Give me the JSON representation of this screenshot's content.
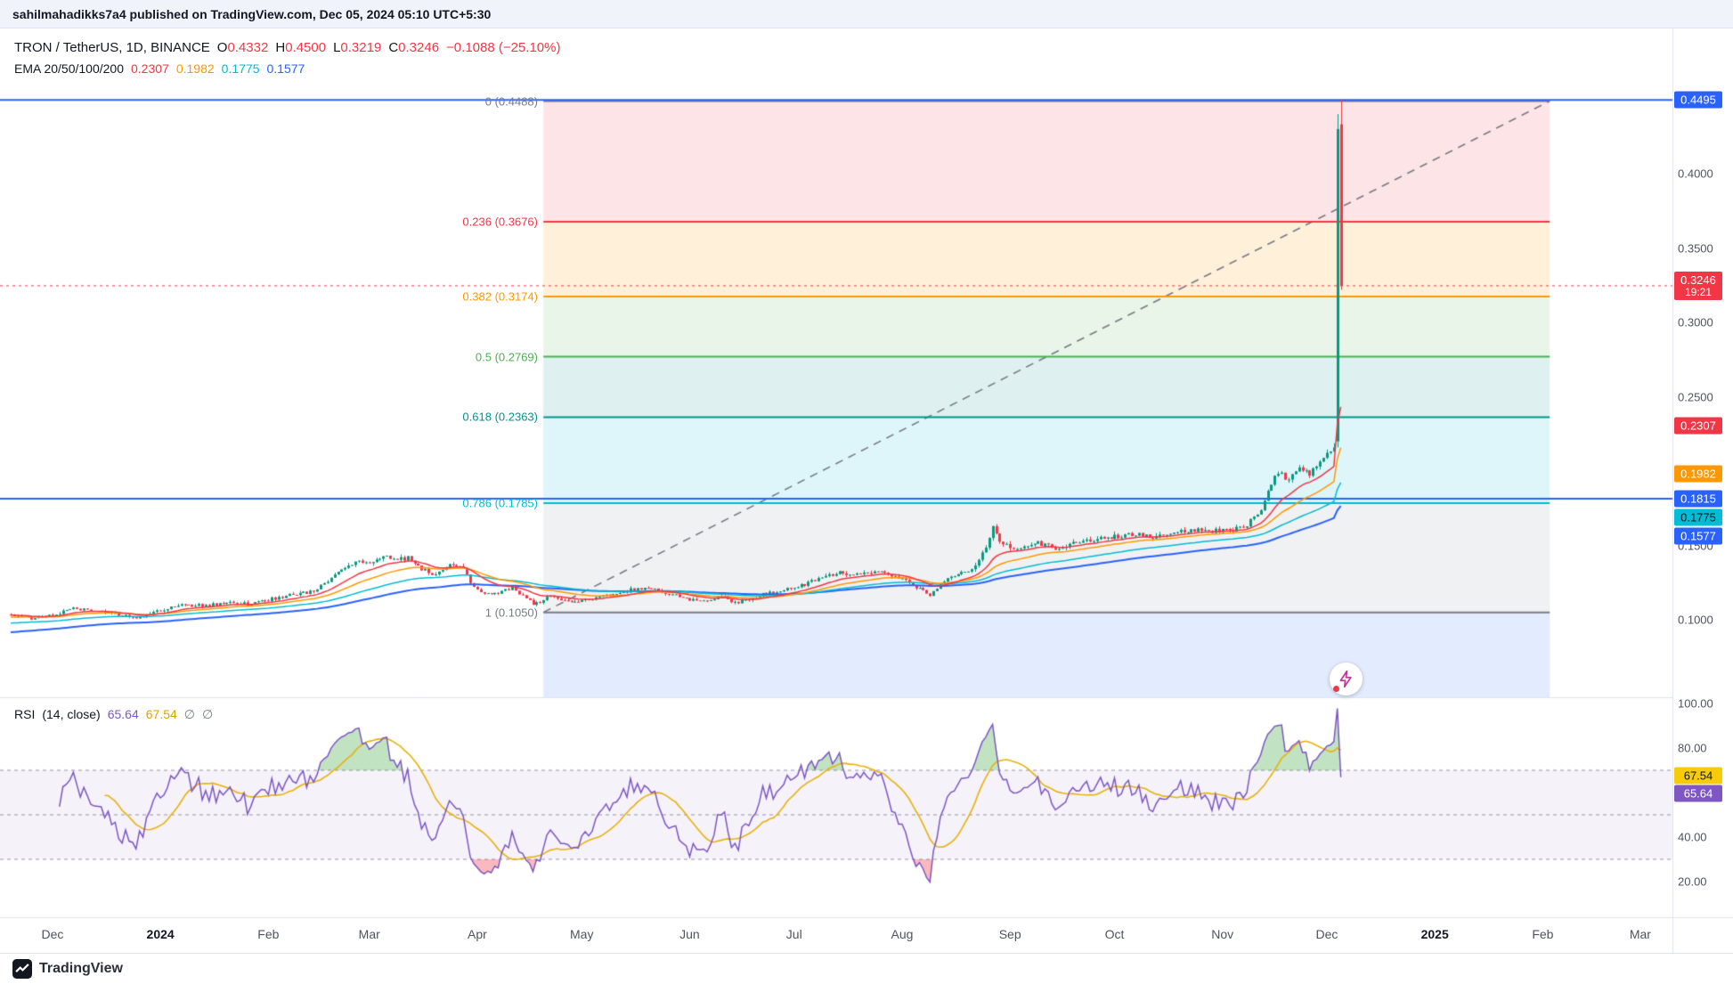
{
  "topbar": {
    "text": "sahilmahadikks7a4 published on TradingView.com, Dec 05, 2024 05:10 UTC+5:30"
  },
  "legend": {
    "symbol": "TRON / TetherUS, 1D, BINANCE",
    "o_label": "O",
    "o": "0.4332",
    "h_label": "H",
    "h": "0.4500",
    "l_label": "L",
    "l": "0.3219",
    "c_label": "C",
    "c": "0.3246",
    "change": "−0.1088 (−25.10%)",
    "ema_title": "EMA 20/50/100/200",
    "ema20": "0.2307",
    "ema50": "0.1982",
    "ema100": "0.1775",
    "ema200": "0.1577"
  },
  "rsi_legend": {
    "title": "RSI",
    "params": "(14, close)",
    "value": "65.64",
    "ma": "67.54",
    "empty1": "∅",
    "empty2": "∅"
  },
  "footer": {
    "brand": "TradingView"
  },
  "icons": {
    "reaction": "lightning-bolt-icon",
    "footer_logo": "tradingview-logo-icon"
  },
  "colors": {
    "background": "#ffffff",
    "candle_up": "#089981",
    "candle_down": "#f23645",
    "grid": "#e0e3eb",
    "axis_text": "#50535e",
    "blue_line": "#2962ff",
    "rsi_band": "rgba(126,87,194,0.08)",
    "rsi_level_line": "#9598a1",
    "rsi_overbought_fill": "rgba(76,175,80,0.35)",
    "rsi_oversold_fill": "rgba(242,54,69,0.35)"
  },
  "chart_data": {
    "type": "candlestick",
    "symbol": "TRON / TetherUS",
    "interval": "1D",
    "exchange": "BINANCE",
    "ylim": [
      0.048,
      0.498
    ],
    "last_bar": {
      "open": 0.4332,
      "high": 0.45,
      "low": 0.3219,
      "close": 0.3246,
      "change": -0.1088,
      "change_pct": -25.1
    },
    "price_path_anchors": [
      [
        0,
        0.104
      ],
      [
        6,
        0.1005
      ],
      [
        12,
        0.103
      ],
      [
        18,
        0.108
      ],
      [
        24,
        0.1055
      ],
      [
        30,
        0.104
      ],
      [
        36,
        0.101
      ],
      [
        43,
        0.1065
      ],
      [
        50,
        0.11
      ],
      [
        56,
        0.1095
      ],
      [
        62,
        0.1115
      ],
      [
        68,
        0.1105
      ],
      [
        74,
        0.1135
      ],
      [
        80,
        0.1165
      ],
      [
        86,
        0.1185
      ],
      [
        90,
        0.124
      ],
      [
        95,
        0.133
      ],
      [
        100,
        0.139
      ],
      [
        104,
        0.138
      ],
      [
        107,
        0.143
      ],
      [
        110,
        0.14
      ],
      [
        114,
        0.1415
      ],
      [
        118,
        0.134
      ],
      [
        122,
        0.13
      ],
      [
        126,
        0.1365
      ],
      [
        130,
        0.1355
      ],
      [
        133,
        0.121
      ],
      [
        136,
        0.118
      ],
      [
        140,
        0.1185
      ],
      [
        144,
        0.1215
      ],
      [
        148,
        0.1145
      ],
      [
        150,
        0.11
      ],
      [
        153,
        0.1135
      ],
      [
        156,
        0.116
      ],
      [
        160,
        0.112
      ],
      [
        164,
        0.113
      ],
      [
        170,
        0.1155
      ],
      [
        176,
        0.119
      ],
      [
        182,
        0.122
      ],
      [
        188,
        0.1185
      ],
      [
        195,
        0.113
      ],
      [
        200,
        0.1125
      ],
      [
        204,
        0.116
      ],
      [
        208,
        0.1115
      ],
      [
        212,
        0.114
      ],
      [
        216,
        0.117
      ],
      [
        222,
        0.12
      ],
      [
        228,
        0.124
      ],
      [
        233,
        0.1285
      ],
      [
        238,
        0.132
      ],
      [
        243,
        0.13
      ],
      [
        248,
        0.133
      ],
      [
        253,
        0.129
      ],
      [
        258,
        0.125
      ],
      [
        262,
        0.119
      ],
      [
        264,
        0.117
      ],
      [
        268,
        0.126
      ],
      [
        272,
        0.13
      ],
      [
        276,
        0.134
      ],
      [
        280,
        0.149
      ],
      [
        282,
        0.162
      ],
      [
        285,
        0.15
      ],
      [
        290,
        0.148
      ],
      [
        295,
        0.1515
      ],
      [
        300,
        0.148
      ],
      [
        305,
        0.151
      ],
      [
        310,
        0.1535
      ],
      [
        317,
        0.156
      ],
      [
        323,
        0.1575
      ],
      [
        329,
        0.1555
      ],
      [
        335,
        0.159
      ],
      [
        341,
        0.1605
      ],
      [
        348,
        0.1595
      ],
      [
        354,
        0.1625
      ],
      [
        358,
        0.17
      ],
      [
        361,
        0.185
      ],
      [
        364,
        0.2
      ],
      [
        367,
        0.193
      ],
      [
        370,
        0.203
      ],
      [
        373,
        0.1985
      ],
      [
        376,
        0.2055
      ],
      [
        378,
        0.2105
      ],
      [
        380,
        0.218
      ]
    ],
    "final_candles": [
      {
        "o": 0.22,
        "h": 0.44,
        "l": 0.216,
        "c": 0.43
      },
      {
        "o": 0.4332,
        "h": 0.45,
        "l": 0.3219,
        "c": 0.3246
      }
    ],
    "emas": [
      {
        "period": 20,
        "value": 0.2307,
        "color": "#f23645"
      },
      {
        "period": 50,
        "value": 0.1982,
        "color": "#ff9800"
      },
      {
        "period": 100,
        "value": 0.1775,
        "color": "#00bcd4"
      },
      {
        "period": 200,
        "value": 0.1577,
        "color": "#2962ff"
      }
    ],
    "fib": {
      "x_start_day": 153,
      "x_end_day": 442,
      "levels": [
        {
          "label": "0 (0.4488)",
          "price": 0.4488,
          "color": "#787b86"
        },
        {
          "label": "0.236 (0.3676)",
          "price": 0.3676,
          "color": "#f23645"
        },
        {
          "label": "0.382 (0.3174)",
          "price": 0.3174,
          "color": "#ff9800"
        },
        {
          "label": "0.5 (0.2769)",
          "price": 0.2769,
          "color": "#4caf50"
        },
        {
          "label": "0.618 (0.2363)",
          "price": 0.2363,
          "color": "#009688"
        },
        {
          "label": "0.786 (0.1785)",
          "price": 0.1785,
          "color": "#00bcd4"
        },
        {
          "label": "1 (0.1050)",
          "price": 0.105,
          "color": "#787b86"
        }
      ],
      "bands": [
        {
          "from": 0.4488,
          "to": 0.3676,
          "color": "rgba(242,54,69,0.13)"
        },
        {
          "from": 0.3676,
          "to": 0.3174,
          "color": "rgba(255,152,0,0.15)"
        },
        {
          "from": 0.3174,
          "to": 0.2769,
          "color": "rgba(76,175,80,0.13)"
        },
        {
          "from": 0.2769,
          "to": 0.2363,
          "color": "rgba(0,150,136,0.13)"
        },
        {
          "from": 0.2363,
          "to": 0.1785,
          "color": "rgba(0,188,212,0.13)"
        },
        {
          "from": 0.1785,
          "to": 0.105,
          "color": "rgba(120,123,134,0.11)"
        },
        {
          "from": 0.105,
          "to": null,
          "color": "rgba(41,98,255,0.13)"
        }
      ],
      "trendline": {
        "from_day": 153,
        "from_price": 0.105,
        "to_day": 442,
        "to_price": 0.4488,
        "color": "#787b86"
      }
    },
    "horizontal_lines": [
      {
        "price": 0.4495,
        "color": "#2962ff"
      },
      {
        "price": 0.1815,
        "color": "#2962ff"
      }
    ],
    "current_price_line": {
      "price": 0.3246,
      "color": "#f23645"
    },
    "rsi": {
      "period": 14,
      "value": 65.64,
      "ma_value": 67.54,
      "line_color": "#7e57c2",
      "ma_color": "#e8b20c",
      "levels": [
        70,
        50,
        30
      ],
      "band": [
        30,
        70
      ],
      "ylim": [
        0,
        100
      ]
    },
    "price_scale": {
      "plain": [
        {
          "label": "0.4000",
          "price": 0.4
        },
        {
          "label": "0.3500",
          "price": 0.35
        },
        {
          "label": "0.3000",
          "price": 0.3
        },
        {
          "label": "0.2500",
          "price": 0.25
        },
        {
          "label": "0.1500",
          "price": 0.15
        },
        {
          "label": "0.1000",
          "price": 0.1
        }
      ],
      "badges": [
        {
          "label": "0.4495",
          "price": 0.4495,
          "bg": "#2962ff",
          "fg": "#ffffff"
        },
        {
          "label": "0.3246",
          "price": 0.3246,
          "bg": "#f23645",
          "fg": "#ffffff",
          "sub": "19:21"
        },
        {
          "label": "0.2307",
          "price": 0.2307,
          "bg": "#f23645",
          "fg": "#ffffff"
        },
        {
          "label": "0.1982",
          "price": 0.1982,
          "bg": "#ff9800",
          "fg": "#ffffff"
        },
        {
          "label": "0.1815",
          "price": 0.1815,
          "bg": "#2962ff",
          "fg": "#ffffff"
        },
        {
          "label": "0.1775",
          "price": 0.1775,
          "bg": "#00bcd4",
          "fg": "#131722"
        },
        {
          "label": "0.1577",
          "price": 0.1577,
          "bg": "#2962ff",
          "fg": "#ffffff"
        }
      ]
    },
    "rsi_scale": {
      "plain": [
        {
          "label": "100.00",
          "v": 100
        },
        {
          "label": "80.00",
          "v": 80
        },
        {
          "label": "60.00",
          "v": 60
        },
        {
          "label": "40.00",
          "v": 40
        },
        {
          "label": "20.00",
          "v": 20
        }
      ],
      "badges": [
        {
          "label": "67.54",
          "v": 67.54,
          "bg": "#f7cb08",
          "fg": "#131722"
        },
        {
          "label": "65.64",
          "v": 65.64,
          "bg": "#7e57c2",
          "fg": "#ffffff"
        }
      ]
    },
    "time_ticks": [
      {
        "label": "Dec",
        "day": 12
      },
      {
        "label": "2024",
        "day": 43,
        "bold": true
      },
      {
        "label": "Feb",
        "day": 74
      },
      {
        "label": "Mar",
        "day": 103
      },
      {
        "label": "Apr",
        "day": 134
      },
      {
        "label": "May",
        "day": 164
      },
      {
        "label": "Jun",
        "day": 195
      },
      {
        "label": "Jul",
        "day": 225
      },
      {
        "label": "Aug",
        "day": 256
      },
      {
        "label": "Sep",
        "day": 287
      },
      {
        "label": "Oct",
        "day": 317
      },
      {
        "label": "Nov",
        "day": 348
      },
      {
        "label": "Dec",
        "day": 378
      },
      {
        "label": "2025",
        "day": 409,
        "bold": true
      },
      {
        "label": "Feb",
        "day": 440
      },
      {
        "label": "Mar",
        "day": 468
      }
    ]
  }
}
